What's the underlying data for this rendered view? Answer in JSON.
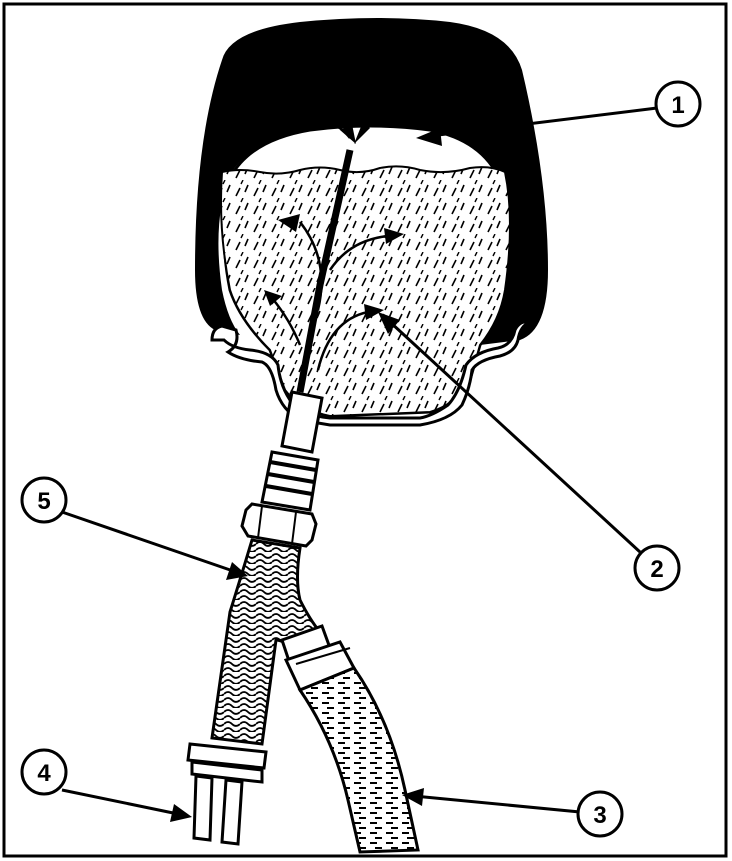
{
  "callouts": [
    {
      "id": "1",
      "label": "1"
    },
    {
      "id": "2",
      "label": "2"
    },
    {
      "id": "3",
      "label": "3"
    },
    {
      "id": "4",
      "label": "4"
    },
    {
      "id": "5",
      "label": "5"
    }
  ],
  "colors": {
    "ink": "#000000",
    "paper": "#ffffff"
  }
}
